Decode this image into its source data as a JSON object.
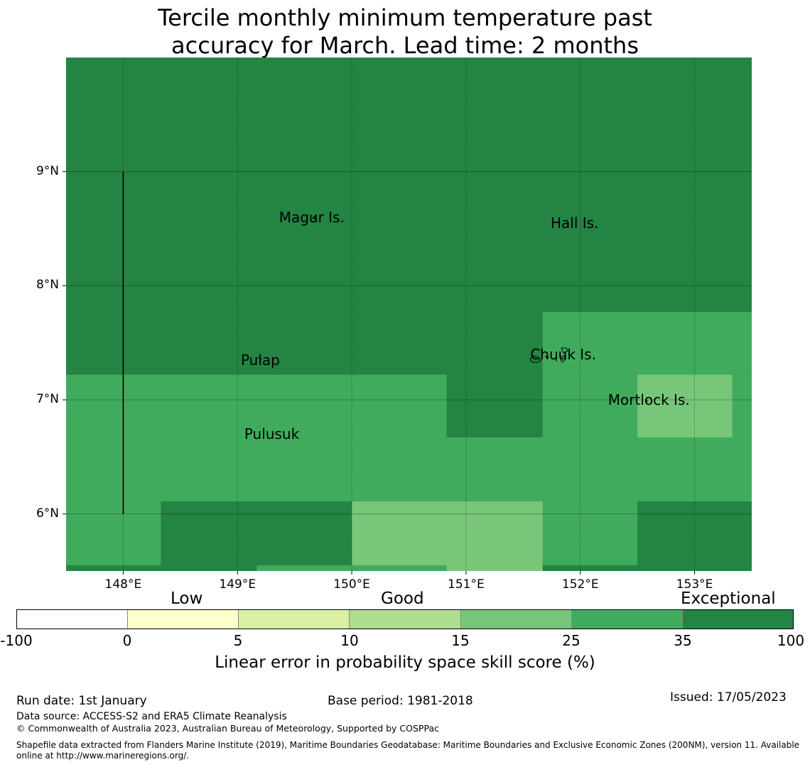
{
  "title_line1": "Tercile monthly minimum temperature past",
  "title_line2": "accuracy for March. Lead time: 2 months",
  "map": {
    "lon_range": [
      147.5,
      153.5
    ],
    "lat_range": [
      5.5,
      10.0
    ],
    "lon_ticks": [
      148,
      149,
      150,
      151,
      152,
      153
    ],
    "lat_ticks": [
      6,
      7,
      8,
      9
    ],
    "lon_tick_labels": [
      "148°E",
      "149°E",
      "150°E",
      "151°E",
      "152°E",
      "153°E"
    ],
    "lat_tick_labels": [
      "6°N",
      "7°N",
      "8°N",
      "9°N"
    ],
    "background_category": 6,
    "cells": [
      {
        "lon": [
          147.5,
          153.5
        ],
        "lat": [
          5.55,
          7.22
        ],
        "cat": 5
      },
      {
        "lon": [
          151.67,
          153.5
        ],
        "lat": [
          7.22,
          7.77
        ],
        "cat": 5
      },
      {
        "lon": [
          150.83,
          151.67
        ],
        "lat": [
          6.67,
          7.22
        ],
        "cat": 6
      },
      {
        "lon": [
          152.5,
          153.33
        ],
        "lat": [
          6.67,
          7.22
        ],
        "cat": 4
      },
      {
        "lon": [
          148.33,
          150.0
        ],
        "lat": [
          5.55,
          6.11
        ],
        "cat": 6
      },
      {
        "lon": [
          150.0,
          151.67
        ],
        "lat": [
          5.5,
          6.11
        ],
        "cat": 4
      },
      {
        "lon": [
          152.5,
          153.5
        ],
        "lat": [
          5.55,
          6.11
        ],
        "cat": 6
      },
      {
        "lon": [
          147.5,
          149.17
        ],
        "lat": [
          5.5,
          5.55
        ],
        "cat": 6
      },
      {
        "lon": [
          149.17,
          150.83
        ],
        "lat": [
          5.5,
          5.55
        ],
        "cat": 5
      }
    ],
    "boundary_line": {
      "lon": 148.0,
      "lat": [
        6.0,
        9.0
      ]
    },
    "places": [
      {
        "name": "Magur Is.",
        "lon": 149.65,
        "lat": 8.6
      },
      {
        "name": "Hall Is.",
        "lon": 151.95,
        "lat": 8.55
      },
      {
        "name": "Pulap",
        "lon": 149.2,
        "lat": 7.35
      },
      {
        "name": "Chuuk Is.",
        "lon": 151.85,
        "lat": 7.4
      },
      {
        "name": "Mortlock Is.",
        "lon": 152.6,
        "lat": 7.0
      },
      {
        "name": "Pulusuk",
        "lon": 149.3,
        "lat": 6.7
      }
    ]
  },
  "colorbar": {
    "colors": [
      "#ffffff",
      "#ffffcc",
      "#d9f0a3",
      "#addd8e",
      "#78c679",
      "#41ab5d",
      "#238443"
    ],
    "tick_labels": [
      "-100",
      "0",
      "5",
      "10",
      "15",
      "25",
      "35",
      "100"
    ],
    "categories": [
      "Low",
      "Good",
      "Exceptional"
    ],
    "label": "Linear error in probability space skill score (%)"
  },
  "footer": {
    "run_date": "Run date: 1st January",
    "base_period": "Base period: 1981-2018",
    "issued": "Issued: 17/05/2023",
    "data_source": "Data source: ACCESS-S2 and ERA5 Climate Reanalysis",
    "copyright": "© Commonwealth of Australia 2023, Australian Bureau of Meteorology, Supported by COSPPac",
    "shapefile_line1": "Shapefile data extracted from Flanders Marine Institute (2019), Maritime Boundaries Geodatabase: Maritime Boundaries and Exclusive Economic Zones (200NM), version 11. Available",
    "shapefile_line2": "online at http://www.marineregions.org/."
  }
}
